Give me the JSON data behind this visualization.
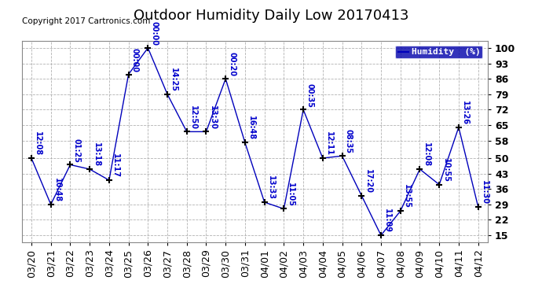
{
  "title": "Outdoor Humidity Daily Low 20170413",
  "copyright": "Copyright 2017 Cartronics.com",
  "legend_label": "Humidity  (%)",
  "x_labels": [
    "03/20",
    "03/21",
    "03/22",
    "03/23",
    "03/24",
    "03/25",
    "03/26",
    "03/27",
    "03/28",
    "03/29",
    "03/30",
    "03/31",
    "04/01",
    "04/02",
    "04/03",
    "04/04",
    "04/05",
    "04/06",
    "04/07",
    "04/08",
    "04/09",
    "04/10",
    "04/11",
    "04/12"
  ],
  "y_values": [
    50,
    29,
    47,
    45,
    40,
    88,
    100,
    79,
    62,
    62,
    86,
    57,
    30,
    27,
    72,
    50,
    51,
    33,
    15,
    26,
    45,
    38,
    64,
    28
  ],
  "point_labels": [
    "12:08",
    "10:48",
    "01:25",
    "13:18",
    "11:17",
    "00:00",
    "00:00",
    "14:25",
    "12:50",
    "13:30",
    "00:20",
    "16:48",
    "13:33",
    "11:05",
    "00:35",
    "12:11",
    "08:35",
    "17:20",
    "11:09",
    "13:55",
    "12:08",
    "10:55",
    "13:26",
    "11:30"
  ],
  "line_color": "#0000bb",
  "marker_color": "#000000",
  "label_color": "#0000cc",
  "background_color": "#ffffff",
  "grid_color": "#aaaaaa",
  "y_ticks": [
    15,
    22,
    29,
    36,
    43,
    50,
    58,
    65,
    72,
    79,
    86,
    93,
    100
  ],
  "ylim_min": 12,
  "ylim_max": 103,
  "title_fontsize": 13,
  "label_fontsize": 7.0,
  "tick_fontsize": 9,
  "copyright_fontsize": 7.5,
  "legend_bg": "#0000aa",
  "legend_fg": "#ffffff"
}
